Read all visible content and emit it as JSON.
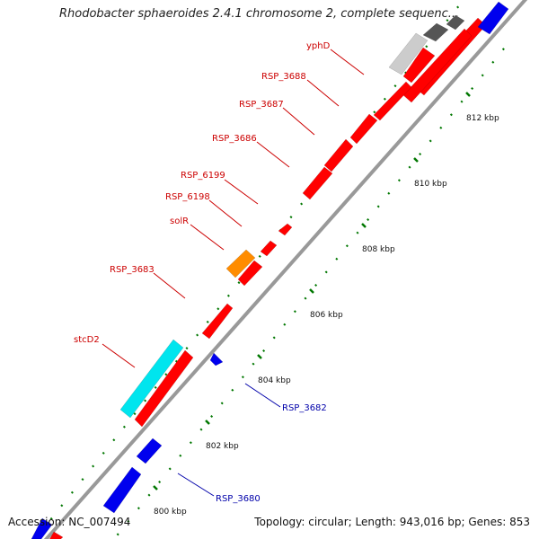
{
  "title": "Rhodobacter sphaeroides 2.4.1 chromosome 2, complete sequenc...",
  "footer": {
    "accession": "Accession: NC_007494",
    "summary": "Topology: circular; Length: 943,016 bp; Genes: 853"
  },
  "colors": {
    "backbone": "#999999",
    "forward_gene": "#ff0000",
    "reverse_gene": "#0000ee",
    "rna_feature": "#00e5ee",
    "highlight_gene": "#ff8c00",
    "other_feature": "#cccccc",
    "dark_feature": "#555555",
    "forward_label": "#cc0000",
    "reverse_label": "#0000aa",
    "tick": "#007700"
  },
  "kbp_ticks": [
    {
      "kbp": 800,
      "label": "800 kbp"
    },
    {
      "kbp": 802,
      "label": "802 kbp"
    },
    {
      "kbp": 804,
      "label": "804 kbp"
    },
    {
      "kbp": 806,
      "label": "806 kbp"
    },
    {
      "kbp": 808,
      "label": "808 kbp"
    },
    {
      "kbp": 810,
      "label": "810 kbp"
    },
    {
      "kbp": 812,
      "label": "812 kbp"
    }
  ],
  "gene_labels": {
    "forward": [
      "yphD",
      "RSP_3688",
      "RSP_3687",
      "RSP_3686",
      "RSP_6199",
      "RSP_6198",
      "solR",
      "RSP_3683",
      "stcD2"
    ],
    "reverse": [
      "RSP_3682",
      "RSP_3680"
    ]
  }
}
